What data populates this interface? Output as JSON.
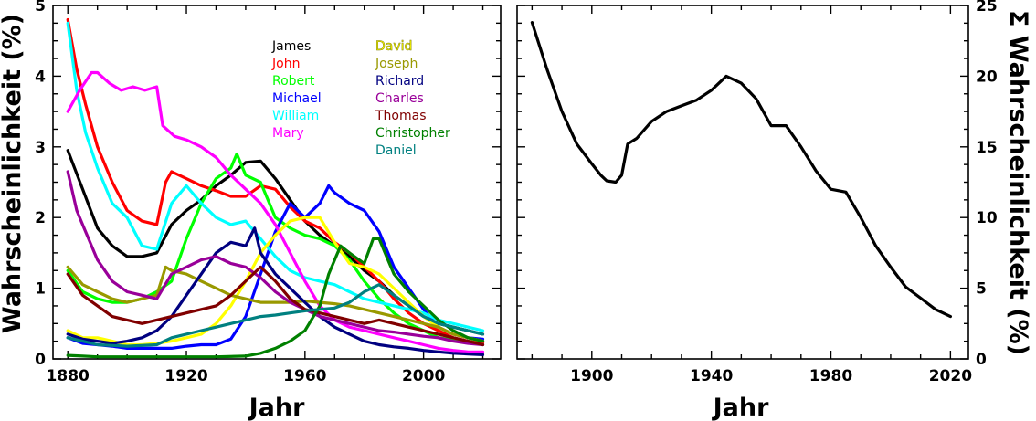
{
  "chart_data": [
    {
      "type": "line",
      "xlabel": "Jahr",
      "ylabel": "Wahrscheinlichkeit (%)",
      "xlim": [
        1875,
        2026
      ],
      "ylim": [
        0,
        5
      ],
      "xticks": [
        1880,
        1920,
        1960,
        2000
      ],
      "yticks": [
        0,
        1,
        2,
        3,
        4,
        5
      ],
      "legend_position": "top-center, two columns",
      "series": [
        {
          "name": "James",
          "color": "#000000",
          "x": [
            1880,
            1885,
            1890,
            1895,
            1900,
            1905,
            1910,
            1915,
            1920,
            1925,
            1930,
            1935,
            1940,
            1945,
            1950,
            1955,
            1960,
            1965,
            1970,
            1975,
            1980,
            1985,
            1990,
            1995,
            2000,
            2005,
            2010,
            2015,
            2020
          ],
          "values": [
            2.95,
            2.4,
            1.85,
            1.6,
            1.45,
            1.45,
            1.5,
            1.9,
            2.1,
            2.25,
            2.45,
            2.6,
            2.78,
            2.8,
            2.55,
            2.25,
            1.95,
            1.75,
            1.6,
            1.45,
            1.25,
            1.1,
            0.9,
            0.75,
            0.6,
            0.5,
            0.45,
            0.4,
            0.35
          ]
        },
        {
          "name": "John",
          "color": "#ff0000",
          "x": [
            1880,
            1883,
            1886,
            1890,
            1895,
            1900,
            1905,
            1910,
            1913,
            1915,
            1920,
            1925,
            1930,
            1935,
            1940,
            1945,
            1950,
            1955,
            1960,
            1965,
            1970,
            1975,
            1980,
            1985,
            1990,
            1995,
            2000,
            2005,
            2010,
            2015,
            2020
          ],
          "values": [
            4.8,
            4.1,
            3.6,
            3.0,
            2.5,
            2.1,
            1.95,
            1.9,
            2.5,
            2.65,
            2.55,
            2.45,
            2.38,
            2.3,
            2.3,
            2.45,
            2.4,
            2.15,
            1.95,
            1.85,
            1.65,
            1.5,
            1.3,
            1.1,
            0.85,
            0.65,
            0.5,
            0.4,
            0.3,
            0.25,
            0.22
          ]
        },
        {
          "name": "Robert",
          "color": "#00ff00",
          "x": [
            1880,
            1885,
            1890,
            1895,
            1900,
            1905,
            1910,
            1915,
            1920,
            1925,
            1930,
            1935,
            1937,
            1940,
            1945,
            1950,
            1955,
            1960,
            1965,
            1970,
            1975,
            1980,
            1985,
            1990,
            1995,
            2000,
            2005,
            2010,
            2015,
            2020
          ],
          "values": [
            1.25,
            0.95,
            0.85,
            0.8,
            0.8,
            0.85,
            0.95,
            1.1,
            1.7,
            2.2,
            2.55,
            2.7,
            2.9,
            2.6,
            2.5,
            2.0,
            1.85,
            1.75,
            1.7,
            1.6,
            1.4,
            1.1,
            0.85,
            0.65,
            0.5,
            0.4,
            0.3,
            0.27,
            0.25,
            0.2
          ]
        },
        {
          "name": "Michael",
          "color": "#0000ff",
          "x": [
            1880,
            1885,
            1890,
            1895,
            1900,
            1905,
            1910,
            1915,
            1920,
            1925,
            1930,
            1935,
            1940,
            1945,
            1950,
            1955,
            1960,
            1965,
            1968,
            1970,
            1975,
            1980,
            1985,
            1990,
            1995,
            2000,
            2005,
            2010,
            2015,
            2020
          ],
          "values": [
            0.3,
            0.22,
            0.2,
            0.18,
            0.15,
            0.15,
            0.15,
            0.15,
            0.18,
            0.2,
            0.2,
            0.28,
            0.6,
            1.2,
            1.8,
            2.2,
            2.0,
            2.2,
            2.45,
            2.35,
            2.2,
            2.1,
            1.8,
            1.3,
            1.0,
            0.7,
            0.45,
            0.35,
            0.3,
            0.28
          ]
        },
        {
          "name": "William",
          "color": "#00ffff",
          "x": [
            1880,
            1883,
            1886,
            1890,
            1895,
            1900,
            1905,
            1910,
            1915,
            1920,
            1925,
            1930,
            1935,
            1940,
            1945,
            1950,
            1955,
            1960,
            1965,
            1970,
            1975,
            1980,
            1985,
            1990,
            1995,
            2000,
            2005,
            2010,
            2015,
            2020
          ],
          "values": [
            4.75,
            3.8,
            3.2,
            2.7,
            2.2,
            2.0,
            1.6,
            1.55,
            2.2,
            2.45,
            2.2,
            2.0,
            1.9,
            1.95,
            1.7,
            1.45,
            1.25,
            1.15,
            1.1,
            1.05,
            0.95,
            0.85,
            0.8,
            0.75,
            0.7,
            0.65,
            0.55,
            0.5,
            0.45,
            0.4
          ]
        },
        {
          "name": "Mary",
          "color": "#ff00ff",
          "x": [
            1880,
            1884,
            1888,
            1890,
            1894,
            1898,
            1902,
            1906,
            1910,
            1912,
            1916,
            1920,
            1925,
            1930,
            1935,
            1940,
            1945,
            1950,
            1955,
            1960,
            1965,
            1970,
            1975,
            1980,
            1985,
            1990,
            1995,
            2000,
            2005,
            2010,
            2015,
            2020
          ],
          "values": [
            3.5,
            3.8,
            4.05,
            4.05,
            3.9,
            3.8,
            3.85,
            3.8,
            3.85,
            3.3,
            3.15,
            3.1,
            3.0,
            2.85,
            2.6,
            2.4,
            2.2,
            1.9,
            1.5,
            1.1,
            0.75,
            0.55,
            0.45,
            0.4,
            0.35,
            0.3,
            0.25,
            0.2,
            0.15,
            0.12,
            0.1,
            0.1
          ]
        },
        {
          "name": "David",
          "color": "#ffff00",
          "x": [
            1880,
            1885,
            1890,
            1895,
            1900,
            1905,
            1910,
            1915,
            1920,
            1925,
            1930,
            1935,
            1940,
            1945,
            1950,
            1955,
            1960,
            1965,
            1970,
            1975,
            1980,
            1985,
            1990,
            1995,
            2000,
            2005,
            2010,
            2015,
            2020
          ],
          "values": [
            0.4,
            0.3,
            0.3,
            0.25,
            0.2,
            0.2,
            0.22,
            0.25,
            0.3,
            0.35,
            0.5,
            0.75,
            1.1,
            1.5,
            1.75,
            1.95,
            2.0,
            2.0,
            1.65,
            1.35,
            1.3,
            1.2,
            1.0,
            0.8,
            0.6,
            0.45,
            0.35,
            0.3,
            0.25
          ]
        },
        {
          "name": "Joseph",
          "color": "#999900",
          "x": [
            1880,
            1885,
            1890,
            1895,
            1900,
            1905,
            1910,
            1913,
            1915,
            1920,
            1925,
            1930,
            1935,
            1940,
            1945,
            1950,
            1955,
            1960,
            1965,
            1970,
            1975,
            1980,
            1985,
            1990,
            1995,
            2000,
            2005,
            2010,
            2015,
            2020
          ],
          "values": [
            1.3,
            1.05,
            0.95,
            0.85,
            0.8,
            0.85,
            0.9,
            1.3,
            1.25,
            1.2,
            1.1,
            1.0,
            0.9,
            0.85,
            0.8,
            0.8,
            0.8,
            0.82,
            0.8,
            0.78,
            0.75,
            0.7,
            0.65,
            0.6,
            0.55,
            0.5,
            0.45,
            0.35,
            0.3,
            0.25
          ]
        },
        {
          "name": "Richard",
          "color": "#000080",
          "x": [
            1880,
            1885,
            1890,
            1895,
            1900,
            1905,
            1910,
            1915,
            1920,
            1925,
            1930,
            1935,
            1940,
            1943,
            1945,
            1950,
            1955,
            1960,
            1965,
            1970,
            1975,
            1980,
            1985,
            1990,
            1995,
            2000,
            2005,
            2010,
            2015,
            2020
          ],
          "values": [
            0.35,
            0.28,
            0.25,
            0.22,
            0.25,
            0.3,
            0.4,
            0.6,
            0.9,
            1.2,
            1.5,
            1.65,
            1.6,
            1.85,
            1.5,
            1.2,
            1.0,
            0.8,
            0.6,
            0.45,
            0.35,
            0.25,
            0.2,
            0.17,
            0.15,
            0.12,
            0.1,
            0.08,
            0.07,
            0.06
          ]
        },
        {
          "name": "Charles",
          "color": "#990099",
          "x": [
            1880,
            1883,
            1886,
            1890,
            1895,
            1900,
            1905,
            1910,
            1915,
            1920,
            1925,
            1930,
            1935,
            1940,
            1945,
            1950,
            1955,
            1960,
            1965,
            1970,
            1975,
            1980,
            1985,
            1990,
            1995,
            2000,
            2005,
            2010,
            2015,
            2020
          ],
          "values": [
            2.65,
            2.1,
            1.8,
            1.4,
            1.1,
            0.95,
            0.9,
            0.85,
            1.2,
            1.3,
            1.4,
            1.45,
            1.35,
            1.3,
            1.15,
            0.95,
            0.8,
            0.7,
            0.6,
            0.55,
            0.5,
            0.45,
            0.4,
            0.38,
            0.35,
            0.32,
            0.3,
            0.25,
            0.22,
            0.2
          ]
        },
        {
          "name": "Thomas",
          "color": "#800000",
          "x": [
            1880,
            1885,
            1890,
            1895,
            1900,
            1905,
            1910,
            1915,
            1920,
            1925,
            1930,
            1935,
            1940,
            1945,
            1950,
            1955,
            1960,
            1965,
            1970,
            1975,
            1980,
            1985,
            1990,
            1995,
            2000,
            2005,
            2010,
            2015,
            2020
          ],
          "values": [
            1.2,
            0.9,
            0.75,
            0.6,
            0.55,
            0.5,
            0.55,
            0.6,
            0.65,
            0.7,
            0.75,
            0.9,
            1.1,
            1.3,
            1.1,
            0.85,
            0.7,
            0.65,
            0.6,
            0.55,
            0.5,
            0.55,
            0.5,
            0.45,
            0.4,
            0.35,
            0.3,
            0.25,
            0.2
          ]
        },
        {
          "name": "Christopher",
          "color": "#008000",
          "x": [
            1880,
            1885,
            1890,
            1900,
            1910,
            1920,
            1930,
            1940,
            1945,
            1950,
            1955,
            1960,
            1965,
            1968,
            1970,
            1972,
            1975,
            1980,
            1983,
            1985,
            1987,
            1990,
            1995,
            2000,
            2005,
            2010,
            2015,
            2020
          ],
          "values": [
            0.05,
            0.04,
            0.03,
            0.03,
            0.03,
            0.03,
            0.03,
            0.04,
            0.08,
            0.15,
            0.25,
            0.4,
            0.75,
            1.2,
            1.4,
            1.6,
            1.5,
            1.35,
            1.7,
            1.7,
            1.5,
            1.2,
            0.95,
            0.75,
            0.55,
            0.4,
            0.3,
            0.25
          ]
        },
        {
          "name": "Daniel",
          "color": "#008080",
          "x": [
            1880,
            1885,
            1890,
            1900,
            1910,
            1915,
            1920,
            1925,
            1930,
            1935,
            1940,
            1945,
            1950,
            1955,
            1960,
            1965,
            1970,
            1975,
            1980,
            1985,
            1990,
            1995,
            2000,
            2005,
            2010,
            2015,
            2020
          ],
          "values": [
            0.3,
            0.25,
            0.2,
            0.18,
            0.2,
            0.3,
            0.35,
            0.4,
            0.45,
            0.5,
            0.55,
            0.6,
            0.62,
            0.65,
            0.68,
            0.7,
            0.72,
            0.8,
            0.95,
            1.05,
            0.9,
            0.75,
            0.6,
            0.5,
            0.45,
            0.4,
            0.35
          ]
        }
      ]
    },
    {
      "type": "line",
      "xlabel": "Jahr",
      "ylabel": "Σ Wahrscheinlichkeit (%)",
      "xlim": [
        1875,
        2026
      ],
      "ylim": [
        0,
        25
      ],
      "xticks": [
        1900,
        1940,
        1980,
        2020
      ],
      "yticks": [
        0,
        5,
        10,
        15,
        20,
        25
      ],
      "series": [
        {
          "color": "#000000",
          "x": [
            1880,
            1885,
            1890,
            1895,
            1900,
            1903,
            1905,
            1908,
            1910,
            1912,
            1915,
            1920,
            1925,
            1930,
            1935,
            1940,
            1945,
            1950,
            1955,
            1960,
            1965,
            1970,
            1975,
            1980,
            1985,
            1990,
            1995,
            2000,
            2005,
            2010,
            2015,
            2020
          ],
          "values": [
            23.8,
            20.5,
            17.5,
            15.2,
            13.8,
            13.0,
            12.6,
            12.5,
            13.0,
            15.2,
            15.6,
            16.8,
            17.5,
            17.9,
            18.3,
            19.0,
            20.0,
            19.5,
            18.4,
            16.5,
            16.5,
            15.0,
            13.3,
            12.0,
            11.8,
            10.0,
            8.0,
            6.5,
            5.1,
            4.3,
            3.5,
            3.0
          ]
        }
      ]
    }
  ]
}
